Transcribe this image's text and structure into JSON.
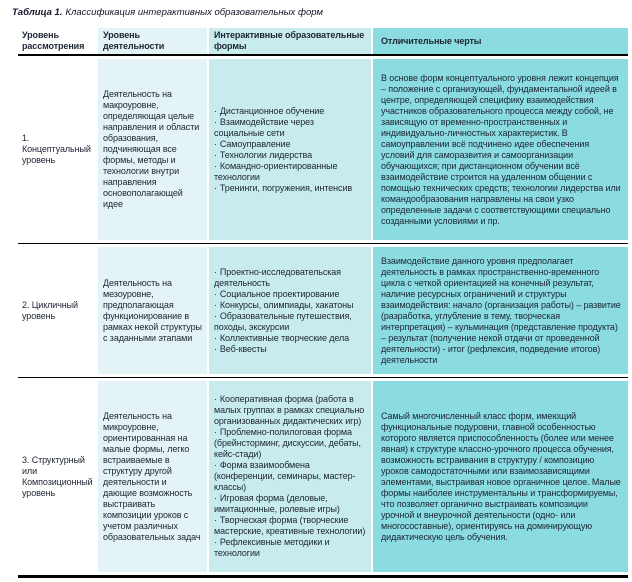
{
  "title": {
    "label": "Таблица 1.",
    "text": "Классификация интерактивных образовательных форм"
  },
  "table": {
    "bullet": "·",
    "headers": [
      "Уровень рассмотрения",
      "Уровень деятельности",
      "Интерактивные образовательные формы",
      "Отличительные черты"
    ],
    "rows": [
      {
        "level": "1. Концептуальный уровень",
        "activity": "Деятельность на макроуровне, определяющая целые направления и области образования, подчиняющая все формы, методы и технологии внутри направления основополагающей идее",
        "forms": [
          "Дистанционное обучение",
          "Взаимодействие через социальные сети",
          "Самоуправление",
          "Технологии лидерства",
          "Командно-ориентированные технологии",
          "Тренинги, погружения, интенсив"
        ],
        "features": "В основе форм концептуального уровня лежит концепция – положение с организующей, фундаментальной идеей в центре, определяющей специфику взаимодействия участников образовательного процесса между собой, не зависящую от временно-пространственных и индивидуально-личностных характеристик. В самоуправлении всё подчинено идее обеспечения условий для саморазвития и самоорганизации обучающихся; при дистанционном обучении всё взаимодействие строится на удаленном общении с помощью технических средств; технологии лидерства или командообразования направлены на свои узко определенные задачи с соответствующими специально созданными условиями и пр."
      },
      {
        "level": "2. Цикличный уровень",
        "activity": "Деятельность на мезоуровне, предполагающая функционирование в рамках некой структуры с заданными этапами",
        "forms": [
          "Проектно-исследовательская деятельность",
          "Социальное проектирование",
          "Конкурсы, олимпиады, хакатоны",
          "Образовательные путешествия, походы, экскурсии",
          "Коллективные творческие дела",
          "Веб-квесты"
        ],
        "features": "Взаимодействие данного уровня предполагает деятельность в рамках пространственно-временного цикла с четкой ориентацией на конечный результат, наличие ресурсных ограничений и структуры взаимодействия: начало (организация работы) – развитие (разработка, углубление в тему, творческая интерпретация) – кульминация (представление продукта) – результат (получение некой отдачи от проведенной деятельности) - итог (рефлексия, подведение итогов) деятельности"
      },
      {
        "level": "3. Структурный или Композиционный уровень",
        "activity": "Деятельность на микроуровне, ориентированная на малые формы, легко встраиваемые в структуру другой деятельности и дающие возможность выстраивать композиции уроков с учетом различных образовательных задач",
        "forms": [
          "Кооперативная форма (работа в малых группах в рамках специально организованных дидактических игр)",
          "Проблемно-полилоговая форма (брейнсторминг, дискуссии, дебаты, кейс-стади)",
          "Форма взаимообмена (конференции, семинары, мастер-классы)",
          "Игровая форма (деловые, имитационные, ролевые игры)",
          "Творческая форма (творческие мастерские, креативные технологии)",
          "Рефлексивные методики и технологии"
        ],
        "features": "Самый многочисленный класс форм, имеющий функциональные подуровни, главной особенностью которого является приспособленность (более или менее явная) к структуре классно-урочного процесса обучения, возможность встраивания в структуру / композицию уроков самодостаточными или взаимозависящими элементами, выстраивая новое органичное целое. Малые формы наиболее инструментальны и трансформируемы, что позволяет органично выстраивать композиции урочной и внеурочной деятельности (одно- или многосоставные), ориентируясь на доминирующую дидактическую цель обучения."
      }
    ]
  },
  "colors": {
    "col_activity_bg": "#e4f4f6",
    "col_forms_bg": "#c8ecee",
    "col_features_bg": "#8adce1",
    "rule": "#000000",
    "text": "#1d2433"
  }
}
